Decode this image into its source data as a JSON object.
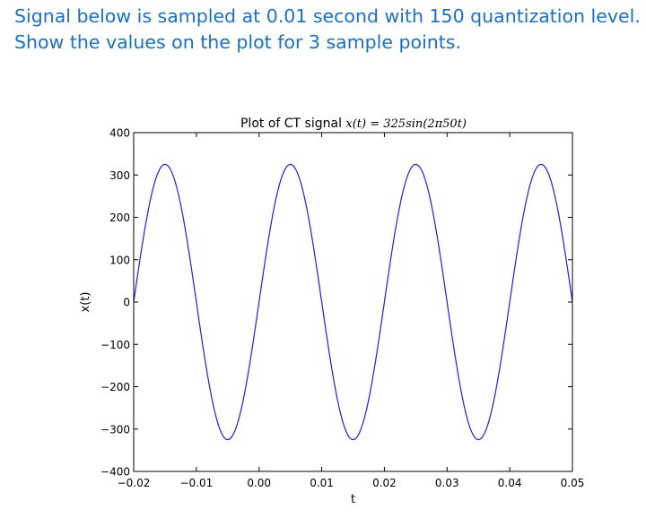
{
  "question": {
    "line1": "Signal below is sampled at 0.01 second with 150 quantization level.",
    "line2": "Show the values on the plot for 3 sample points."
  },
  "chart_data": {
    "type": "line",
    "title_prefix": "Plot of CT signal ",
    "title_math": "x(t) = 325sin(2π50t)",
    "xlabel": "t",
    "ylabel": "x(t)",
    "xlim": [
      -0.02,
      0.05
    ],
    "ylim": [
      -400,
      400
    ],
    "xticks": [
      -0.02,
      -0.01,
      0.0,
      0.01,
      0.02,
      0.03,
      0.04,
      0.05
    ],
    "xtick_labels": [
      "−0.02",
      "−0.01",
      "0.00",
      "0.01",
      "0.02",
      "0.03",
      "0.04",
      "0.05"
    ],
    "yticks": [
      400,
      300,
      200,
      100,
      0,
      -100,
      -200,
      -300,
      -400
    ],
    "ytick_labels": [
      "400",
      "300",
      "200",
      "100",
      "0",
      "−100",
      "−200",
      "−300",
      "−400"
    ],
    "series": [
      {
        "function": "325*sin(2*pi*50*t)",
        "amplitude": 325,
        "frequency_hz": 50,
        "x": [
          -0.02,
          -0.015,
          -0.01,
          -0.005,
          0.0,
          0.005,
          0.01,
          0.015,
          0.02,
          0.025,
          0.03,
          0.035,
          0.04,
          0.045,
          0.05
        ],
        "y": [
          0,
          325,
          0,
          -325,
          0,
          325,
          0,
          -325,
          0,
          325,
          0,
          -325,
          0,
          325,
          0
        ]
      }
    ],
    "line_color": "#1f1fdd",
    "grid": false,
    "legend": "none"
  }
}
